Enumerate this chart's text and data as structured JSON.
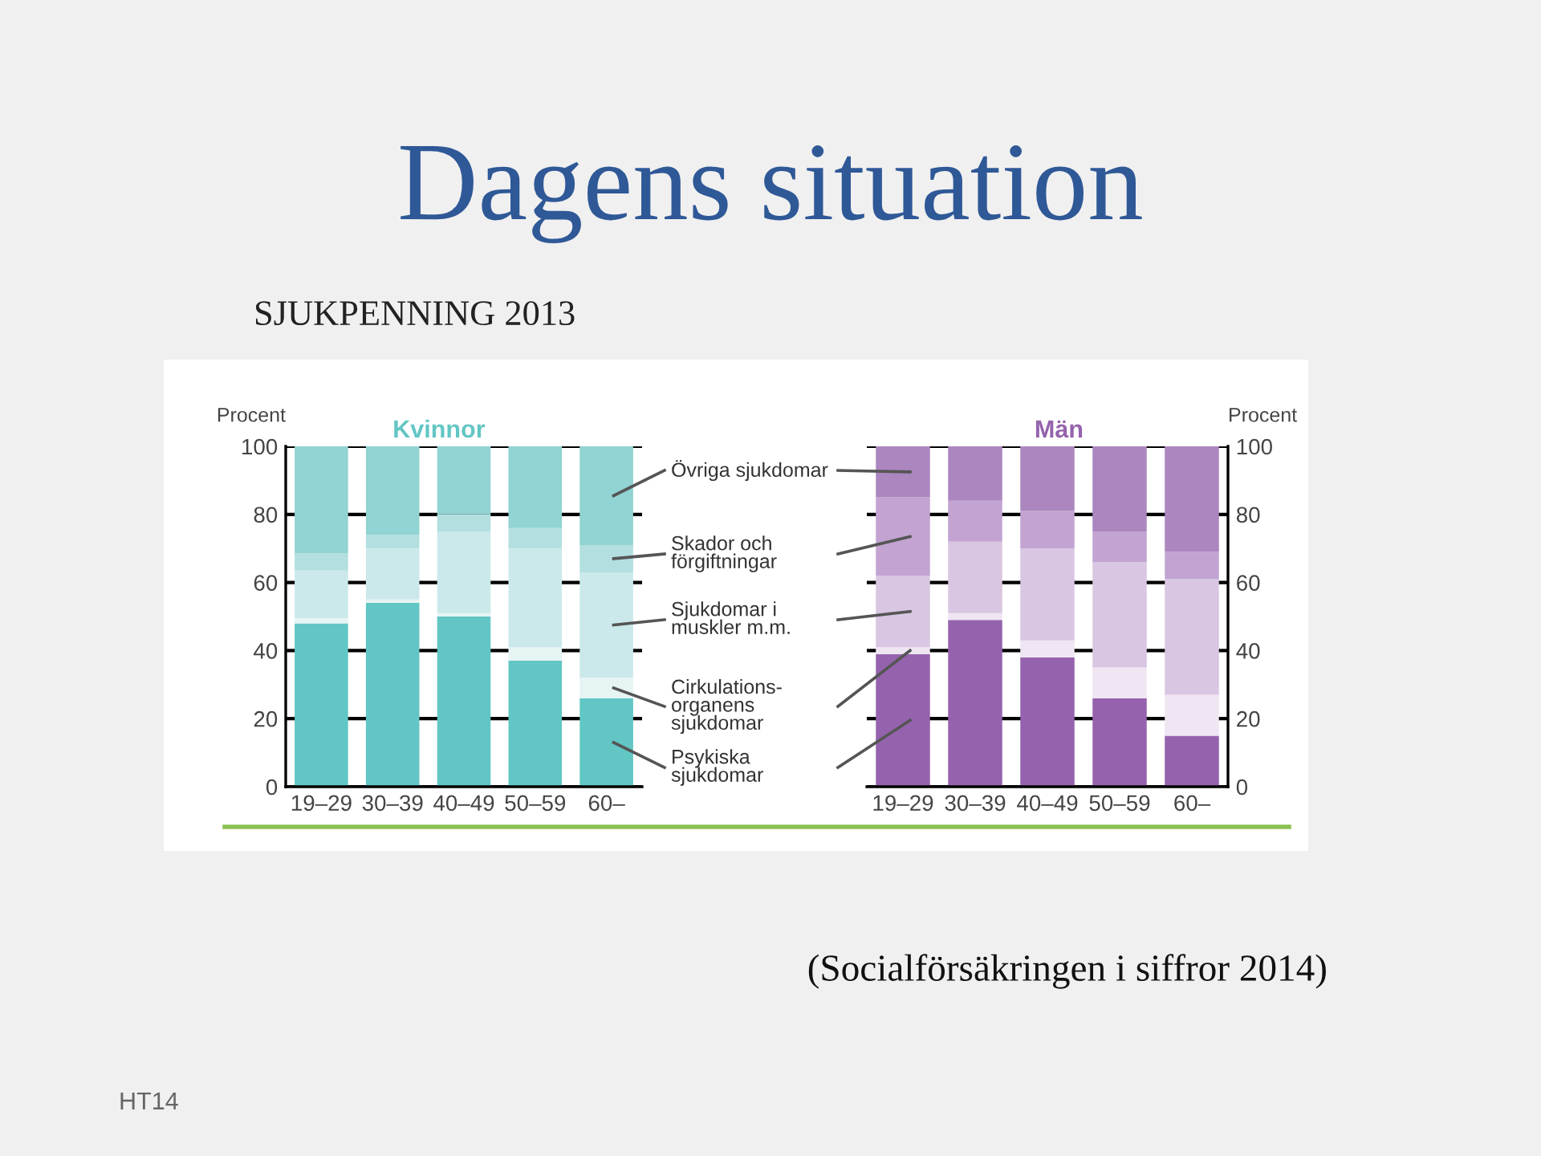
{
  "chart_data": [
    {
      "type": "bar",
      "title": "Kvinnor",
      "ylabel": "Procent",
      "stacked": true,
      "grid": "y",
      "legend": "right",
      "annotations": [
        "Dagens situation",
        "SJUKPENNING 2013"
      ],
      "categories": [
        "19–29",
        "30–39",
        "40–49",
        "50–59",
        "60–"
      ],
      "ylim": [
        0,
        100
      ],
      "yticks": [
        0,
        20,
        40,
        60,
        80,
        100
      ],
      "series": [
        {
          "name": "Psykiska\nsjukdomar",
          "color": "#62c6c4",
          "values": [
            48,
            54,
            50,
            37,
            26
          ]
        },
        {
          "name": "Cirkulations-\norganens\nsjukdomar",
          "color": "#e6f4f4",
          "values": [
            1.5,
            1,
            1,
            4,
            6
          ]
        },
        {
          "name": "Sjukdomar i\nmuskler m.m.",
          "color": "#cbe9ea",
          "values": [
            14,
            15,
            24,
            29,
            31
          ]
        },
        {
          "name": "Skador och\nförgiftningar",
          "color": "#b3dfe0",
          "values": [
            5,
            4,
            5,
            6,
            8
          ]
        },
        {
          "name": "Övriga sjukdomar",
          "color": "#92d3d3",
          "values": [
            31.5,
            26,
            20,
            24,
            29
          ]
        }
      ]
    },
    {
      "type": "bar",
      "title": "Män",
      "ylabel": "Procent",
      "stacked": true,
      "grid": "y",
      "annotations": [
        "(Socialförsäkringen i siffror 2014)",
        "HT14"
      ],
      "categories": [
        "19–29",
        "30–39",
        "40–49",
        "50–59",
        "60–"
      ],
      "ylim": [
        0,
        100
      ],
      "yticks": [
        0,
        20,
        40,
        60,
        80,
        100
      ],
      "series": [
        {
          "color": "#9563ad",
          "values": [
            39,
            49,
            38,
            26,
            15
          ]
        },
        {
          "color": "#efe5f3",
          "values": [
            2,
            2,
            5,
            9,
            12
          ]
        },
        {
          "color": "#d9c6e2",
          "values": [
            21,
            21,
            27,
            31,
            34
          ]
        },
        {
          "color": "#c2a3d1",
          "values": [
            23,
            12,
            11,
            9,
            8
          ]
        },
        {
          "color": "#ab86bf",
          "values": [
            15,
            16,
            19,
            25,
            31
          ]
        }
      ]
    }
  ]
}
